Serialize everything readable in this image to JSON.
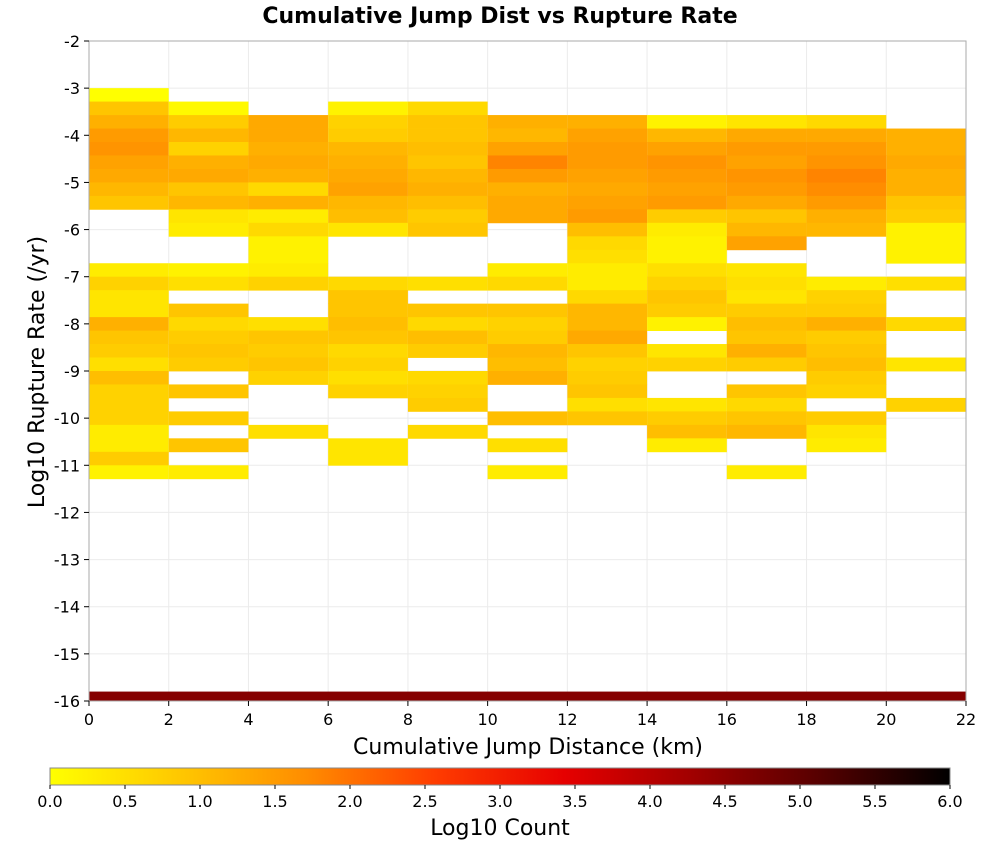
{
  "chart_data": {
    "type": "heatmap",
    "title": "Cumulative Jump Dist vs Rupture Rate",
    "xlabel": "Cumulative Jump Distance (km)",
    "ylabel": "Log10 Rupture Rate (/yr)",
    "xlim": [
      0,
      22
    ],
    "ylim": [
      -16,
      -2
    ],
    "x_ticks": [
      0,
      2,
      4,
      6,
      8,
      10,
      12,
      14,
      16,
      18,
      20,
      22
    ],
    "y_ticks": [
      -2,
      -3,
      -4,
      -5,
      -6,
      -7,
      -8,
      -9,
      -10,
      -11,
      -12,
      -13,
      -14,
      -15,
      -16
    ],
    "grid": true,
    "x_bin_width": 2,
    "y_bin_height": 0.286,
    "colorbar": {
      "label": "Log10 Count",
      "range": [
        0,
        6
      ],
      "ticks": [
        "0.0",
        "0.5",
        "1.0",
        "1.5",
        "2.0",
        "2.5",
        "3.0",
        "3.5",
        "4.0",
        "4.5",
        "5.0",
        "5.5",
        "6.0"
      ],
      "palette": [
        "#ffff00",
        "#ffc800",
        "#ff8c00",
        "#ff3c00",
        "#e60000",
        "#a00000",
        "#550000",
        "#000000"
      ]
    },
    "columns": [
      {
        "x": 0,
        "cells": [
          [
            -3.286,
            0.0
          ],
          [
            -3.571,
            0.9
          ],
          [
            -3.857,
            1.2
          ],
          [
            -4.143,
            1.5
          ],
          [
            -4.429,
            1.6
          ],
          [
            -4.714,
            1.4
          ],
          [
            -5.0,
            1.3
          ],
          [
            -5.286,
            1.1
          ],
          [
            -5.571,
            0.9
          ],
          [
            -7.0,
            0.3
          ],
          [
            -7.286,
            0.7
          ],
          [
            -7.571,
            0.4
          ],
          [
            -7.857,
            0.4
          ],
          [
            -8.143,
            1.2
          ],
          [
            -8.429,
            0.9
          ],
          [
            -8.714,
            0.8
          ],
          [
            -9.0,
            0.5
          ],
          [
            -9.286,
            1.0
          ],
          [
            -9.571,
            0.7
          ],
          [
            -9.857,
            0.7
          ],
          [
            -10.143,
            0.7
          ],
          [
            -10.429,
            0.3
          ],
          [
            -10.714,
            0.3
          ],
          [
            -11.0,
            0.8
          ],
          [
            -11.286,
            0.2
          ]
        ]
      },
      {
        "x": 2,
        "cells": [
          [
            -3.571,
            0.1
          ],
          [
            -3.857,
            0.8
          ],
          [
            -4.143,
            1.1
          ],
          [
            -4.429,
            0.7
          ],
          [
            -4.714,
            1.2
          ],
          [
            -5.0,
            1.3
          ],
          [
            -5.286,
            0.9
          ],
          [
            -5.571,
            1.1
          ],
          [
            -5.857,
            0.4
          ],
          [
            -6.143,
            0.3
          ],
          [
            -7.0,
            0.2
          ],
          [
            -7.286,
            0.5
          ],
          [
            -7.857,
            0.9
          ],
          [
            -8.143,
            0.6
          ],
          [
            -8.429,
            0.8
          ],
          [
            -8.714,
            0.9
          ],
          [
            -9.0,
            0.8
          ],
          [
            -9.571,
            0.9
          ],
          [
            -10.143,
            0.8
          ],
          [
            -10.714,
            0.9
          ],
          [
            -11.286,
            0.3
          ]
        ]
      },
      {
        "x": 4,
        "cells": [
          [
            -3.857,
            1.3
          ],
          [
            -4.143,
            1.3
          ],
          [
            -4.429,
            1.2
          ],
          [
            -4.714,
            1.3
          ],
          [
            -5.0,
            1.2
          ],
          [
            -5.286,
            0.6
          ],
          [
            -5.571,
            1.2
          ],
          [
            -5.857,
            0.3
          ],
          [
            -6.143,
            0.6
          ],
          [
            -6.429,
            0.2
          ],
          [
            -6.714,
            0.2
          ],
          [
            -7.0,
            0.3
          ],
          [
            -7.286,
            0.7
          ],
          [
            -8.143,
            0.5
          ],
          [
            -8.429,
            0.9
          ],
          [
            -8.714,
            0.8
          ],
          [
            -9.0,
            0.9
          ],
          [
            -9.286,
            0.7
          ],
          [
            -10.429,
            0.5
          ]
        ]
      },
      {
        "x": 6,
        "cells": [
          [
            -3.571,
            0.2
          ],
          [
            -3.857,
            0.7
          ],
          [
            -4.143,
            0.8
          ],
          [
            -4.429,
            1.1
          ],
          [
            -4.714,
            1.2
          ],
          [
            -5.0,
            1.3
          ],
          [
            -5.286,
            1.4
          ],
          [
            -5.571,
            1.1
          ],
          [
            -5.857,
            1.0
          ],
          [
            -6.143,
            0.4
          ],
          [
            -7.286,
            0.6
          ],
          [
            -7.571,
            0.9
          ],
          [
            -7.857,
            0.9
          ],
          [
            -8.143,
            1.0
          ],
          [
            -8.429,
            0.9
          ],
          [
            -8.714,
            0.6
          ],
          [
            -9.0,
            0.7
          ],
          [
            -9.286,
            0.5
          ],
          [
            -9.571,
            0.7
          ],
          [
            -10.714,
            0.4
          ],
          [
            -11.0,
            0.4
          ]
        ]
      },
      {
        "x": 8,
        "cells": [
          [
            -3.571,
            0.6
          ],
          [
            -3.857,
            0.9
          ],
          [
            -4.143,
            0.9
          ],
          [
            -4.429,
            1.0
          ],
          [
            -4.714,
            0.9
          ],
          [
            -5.0,
            1.1
          ],
          [
            -5.286,
            1.2
          ],
          [
            -5.571,
            1.0
          ],
          [
            -5.857,
            0.8
          ],
          [
            -6.143,
            0.9
          ],
          [
            -7.286,
            0.5
          ],
          [
            -7.857,
            0.9
          ],
          [
            -8.143,
            0.6
          ],
          [
            -8.429,
            1.0
          ],
          [
            -8.714,
            0.8
          ],
          [
            -9.286,
            0.6
          ],
          [
            -9.571,
            0.7
          ],
          [
            -9.857,
            0.8
          ],
          [
            -10.429,
            0.6
          ]
        ]
      },
      {
        "x": 10,
        "cells": [
          [
            -3.857,
            1.2
          ],
          [
            -4.143,
            1.1
          ],
          [
            -4.429,
            1.4
          ],
          [
            -4.714,
            1.8
          ],
          [
            -5.0,
            1.5
          ],
          [
            -5.286,
            1.2
          ],
          [
            -5.571,
            1.3
          ],
          [
            -5.857,
            1.3
          ],
          [
            -7.0,
            0.3
          ],
          [
            -7.286,
            0.6
          ],
          [
            -7.857,
            0.9
          ],
          [
            -8.143,
            0.7
          ],
          [
            -8.429,
            0.8
          ],
          [
            -8.714,
            1.1
          ],
          [
            -9.0,
            1.0
          ],
          [
            -9.286,
            1.2
          ],
          [
            -10.143,
            1.0
          ],
          [
            -10.714,
            0.5
          ],
          [
            -11.286,
            0.3
          ]
        ]
      },
      {
        "x": 12,
        "cells": [
          [
            -3.857,
            1.2
          ],
          [
            -4.143,
            1.4
          ],
          [
            -4.429,
            1.5
          ],
          [
            -4.714,
            1.5
          ],
          [
            -5.0,
            1.4
          ],
          [
            -5.286,
            1.3
          ],
          [
            -5.571,
            1.4
          ],
          [
            -5.857,
            1.5
          ],
          [
            -6.143,
            1.0
          ],
          [
            -6.429,
            0.6
          ],
          [
            -6.714,
            0.5
          ],
          [
            -7.0,
            0.3
          ],
          [
            -7.286,
            0.3
          ],
          [
            -7.571,
            0.6
          ],
          [
            -7.857,
            1.1
          ],
          [
            -8.143,
            1.1
          ],
          [
            -8.429,
            1.3
          ],
          [
            -8.714,
            0.9
          ],
          [
            -9.0,
            0.7
          ],
          [
            -9.286,
            0.8
          ],
          [
            -9.571,
            0.9
          ],
          [
            -9.857,
            0.5
          ],
          [
            -10.143,
            0.9
          ]
        ]
      },
      {
        "x": 14,
        "cells": [
          [
            -3.857,
            0.2
          ],
          [
            -4.143,
            1.1
          ],
          [
            -4.429,
            1.4
          ],
          [
            -4.714,
            1.6
          ],
          [
            -5.0,
            1.5
          ],
          [
            -5.286,
            1.4
          ],
          [
            -5.571,
            1.5
          ],
          [
            -5.857,
            0.8
          ],
          [
            -6.143,
            0.3
          ],
          [
            -6.429,
            0.2
          ],
          [
            -6.714,
            0.2
          ],
          [
            -7.0,
            0.5
          ],
          [
            -7.286,
            0.7
          ],
          [
            -7.571,
            0.9
          ],
          [
            -7.857,
            0.8
          ],
          [
            -8.143,
            0.2
          ],
          [
            -8.714,
            0.4
          ],
          [
            -9.0,
            0.7
          ],
          [
            -9.857,
            0.4
          ],
          [
            -10.143,
            0.8
          ],
          [
            -10.429,
            1.0
          ],
          [
            -10.714,
            0.3
          ]
        ]
      },
      {
        "x": 16,
        "cells": [
          [
            -3.857,
            0.4
          ],
          [
            -4.143,
            1.3
          ],
          [
            -4.429,
            1.5
          ],
          [
            -4.714,
            1.4
          ],
          [
            -5.0,
            1.6
          ],
          [
            -5.286,
            1.5
          ],
          [
            -5.571,
            1.3
          ],
          [
            -5.857,
            0.9
          ],
          [
            -6.143,
            1.1
          ],
          [
            -6.429,
            1.4
          ],
          [
            -7.0,
            0.4
          ],
          [
            -7.286,
            0.5
          ],
          [
            -7.571,
            0.4
          ],
          [
            -7.857,
            0.8
          ],
          [
            -8.143,
            1.0
          ],
          [
            -8.429,
            0.9
          ],
          [
            -8.714,
            1.2
          ],
          [
            -9.0,
            0.8
          ],
          [
            -9.571,
            0.9
          ],
          [
            -9.857,
            0.6
          ],
          [
            -10.143,
            0.9
          ],
          [
            -10.429,
            1.1
          ],
          [
            -11.286,
            0.3
          ]
        ]
      },
      {
        "x": 18,
        "cells": [
          [
            -3.857,
            0.6
          ],
          [
            -4.143,
            1.3
          ],
          [
            -4.429,
            1.5
          ],
          [
            -4.714,
            1.6
          ],
          [
            -5.0,
            1.8
          ],
          [
            -5.286,
            1.7
          ],
          [
            -5.571,
            1.5
          ],
          [
            -5.857,
            1.2
          ],
          [
            -6.143,
            1.1
          ],
          [
            -7.286,
            0.3
          ],
          [
            -7.571,
            0.7
          ],
          [
            -7.857,
            0.8
          ],
          [
            -8.143,
            1.2
          ],
          [
            -8.429,
            0.8
          ],
          [
            -8.714,
            0.9
          ],
          [
            -9.0,
            1.0
          ],
          [
            -9.286,
            0.8
          ],
          [
            -9.571,
            0.7
          ],
          [
            -10.143,
            0.8
          ],
          [
            -10.429,
            0.4
          ],
          [
            -10.714,
            0.3
          ]
        ]
      },
      {
        "x": 20,
        "cells": [
          [
            -4.143,
            1.2
          ],
          [
            -4.429,
            1.2
          ],
          [
            -4.714,
            1.3
          ],
          [
            -5.0,
            1.2
          ],
          [
            -5.286,
            1.2
          ],
          [
            -5.571,
            0.9
          ],
          [
            -5.857,
            0.8
          ],
          [
            -6.143,
            0.2
          ],
          [
            -6.429,
            0.2
          ],
          [
            -6.714,
            0.2
          ],
          [
            -7.286,
            0.5
          ],
          [
            -8.143,
            0.6
          ],
          [
            -9.0,
            0.4
          ],
          [
            -9.857,
            0.7
          ]
        ]
      }
    ],
    "bottom_band": {
      "y": -16,
      "height": 0.2,
      "value": 4.6
    }
  }
}
